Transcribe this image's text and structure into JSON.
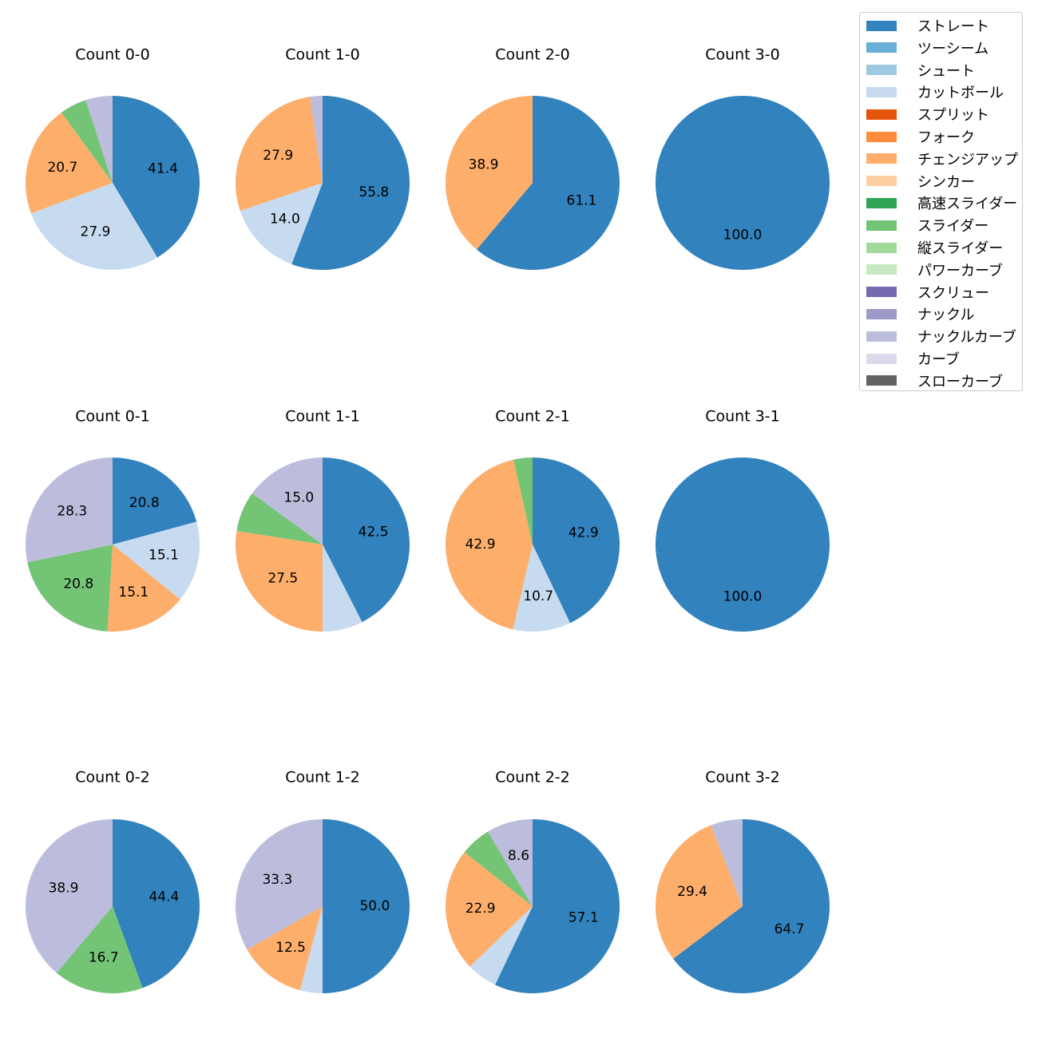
{
  "legend": {
    "items": [
      {
        "label": "ストレート",
        "color": "#3182bd"
      },
      {
        "label": "ツーシーム",
        "color": "#6baed6"
      },
      {
        "label": "シュート",
        "color": "#9ecae1"
      },
      {
        "label": "カットボール",
        "color": "#c6dbef"
      },
      {
        "label": "スプリット",
        "color": "#e6550d"
      },
      {
        "label": "フォーク",
        "color": "#fd8d3c"
      },
      {
        "label": "チェンジアップ",
        "color": "#fdae6b"
      },
      {
        "label": "シンカー",
        "color": "#fdd0a2"
      },
      {
        "label": "高速スライダー",
        "color": "#31a354"
      },
      {
        "label": "スライダー",
        "color": "#74c476"
      },
      {
        "label": "縦スライダー",
        "color": "#a1d99b"
      },
      {
        "label": "パワーカーブ",
        "color": "#c7e9c0"
      },
      {
        "label": "スクリュー",
        "color": "#756bb1"
      },
      {
        "label": "ナックル",
        "color": "#9e9ac8"
      },
      {
        "label": "ナックルカーブ",
        "color": "#bcbddc"
      },
      {
        "label": "カーブ",
        "color": "#dadaeb"
      },
      {
        "label": "スローカーブ",
        "color": "#636363"
      }
    ]
  },
  "chart_data": [
    {
      "type": "pie",
      "title": "Count 0-0",
      "slices": [
        {
          "pitch": "ストレート",
          "value": 41.4,
          "label": "41.4"
        },
        {
          "pitch": "カットボール",
          "value": 27.9,
          "label": "27.9"
        },
        {
          "pitch": "チェンジアップ",
          "value": 20.7,
          "label": "20.7"
        },
        {
          "pitch": "スライダー",
          "value": 5.0,
          "label": ""
        },
        {
          "pitch": "ナックルカーブ",
          "value": 5.0,
          "label": ""
        }
      ]
    },
    {
      "type": "pie",
      "title": "Count 1-0",
      "slices": [
        {
          "pitch": "ストレート",
          "value": 55.8,
          "label": "55.8"
        },
        {
          "pitch": "カットボール",
          "value": 14.0,
          "label": "14.0"
        },
        {
          "pitch": "チェンジアップ",
          "value": 27.9,
          "label": "27.9"
        },
        {
          "pitch": "ナックルカーブ",
          "value": 2.3,
          "label": ""
        }
      ]
    },
    {
      "type": "pie",
      "title": "Count 2-0",
      "slices": [
        {
          "pitch": "ストレート",
          "value": 61.1,
          "label": "61.1"
        },
        {
          "pitch": "チェンジアップ",
          "value": 38.9,
          "label": "38.9"
        }
      ]
    },
    {
      "type": "pie",
      "title": "Count 3-0",
      "slices": [
        {
          "pitch": "ストレート",
          "value": 100.0,
          "label": "100.0"
        }
      ]
    },
    {
      "type": "pie",
      "title": "Count 0-1",
      "slices": [
        {
          "pitch": "ストレート",
          "value": 20.8,
          "label": "20.8"
        },
        {
          "pitch": "カットボール",
          "value": 15.1,
          "label": "15.1"
        },
        {
          "pitch": "チェンジアップ",
          "value": 15.1,
          "label": "15.1"
        },
        {
          "pitch": "スライダー",
          "value": 20.8,
          "label": "20.8"
        },
        {
          "pitch": "ナックルカーブ",
          "value": 28.3,
          "label": "28.3"
        }
      ]
    },
    {
      "type": "pie",
      "title": "Count 1-1",
      "slices": [
        {
          "pitch": "ストレート",
          "value": 42.5,
          "label": "42.5"
        },
        {
          "pitch": "カットボール",
          "value": 7.5,
          "label": ""
        },
        {
          "pitch": "チェンジアップ",
          "value": 27.5,
          "label": "27.5"
        },
        {
          "pitch": "スライダー",
          "value": 7.5,
          "label": ""
        },
        {
          "pitch": "ナックルカーブ",
          "value": 15.0,
          "label": "15.0"
        }
      ]
    },
    {
      "type": "pie",
      "title": "Count 2-1",
      "slices": [
        {
          "pitch": "ストレート",
          "value": 42.9,
          "label": "42.9"
        },
        {
          "pitch": "カットボール",
          "value": 10.7,
          "label": "10.7"
        },
        {
          "pitch": "チェンジアップ",
          "value": 42.9,
          "label": "42.9"
        },
        {
          "pitch": "スライダー",
          "value": 3.5,
          "label": ""
        }
      ]
    },
    {
      "type": "pie",
      "title": "Count 3-1",
      "slices": [
        {
          "pitch": "ストレート",
          "value": 100.0,
          "label": "100.0"
        }
      ]
    },
    {
      "type": "pie",
      "title": "Count 0-2",
      "slices": [
        {
          "pitch": "ストレート",
          "value": 44.4,
          "label": "44.4"
        },
        {
          "pitch": "スライダー",
          "value": 16.7,
          "label": "16.7"
        },
        {
          "pitch": "ナックルカーブ",
          "value": 38.9,
          "label": "38.9"
        }
      ]
    },
    {
      "type": "pie",
      "title": "Count 1-2",
      "slices": [
        {
          "pitch": "ストレート",
          "value": 50.0,
          "label": "50.0"
        },
        {
          "pitch": "カットボール",
          "value": 4.2,
          "label": ""
        },
        {
          "pitch": "チェンジアップ",
          "value": 12.5,
          "label": "12.5"
        },
        {
          "pitch": "ナックルカーブ",
          "value": 33.3,
          "label": "33.3"
        }
      ]
    },
    {
      "type": "pie",
      "title": "Count 2-2",
      "slices": [
        {
          "pitch": "ストレート",
          "value": 57.1,
          "label": "57.1"
        },
        {
          "pitch": "カットボール",
          "value": 5.7,
          "label": ""
        },
        {
          "pitch": "チェンジアップ",
          "value": 22.9,
          "label": "22.9"
        },
        {
          "pitch": "スライダー",
          "value": 5.7,
          "label": ""
        },
        {
          "pitch": "ナックルカーブ",
          "value": 8.6,
          "label": "8.6"
        }
      ]
    },
    {
      "type": "pie",
      "title": "Count 3-2",
      "slices": [
        {
          "pitch": "ストレート",
          "value": 64.7,
          "label": "64.7"
        },
        {
          "pitch": "チェンジアップ",
          "value": 29.4,
          "label": "29.4"
        },
        {
          "pitch": "ナックルカーブ",
          "value": 5.9,
          "label": ""
        }
      ]
    }
  ]
}
